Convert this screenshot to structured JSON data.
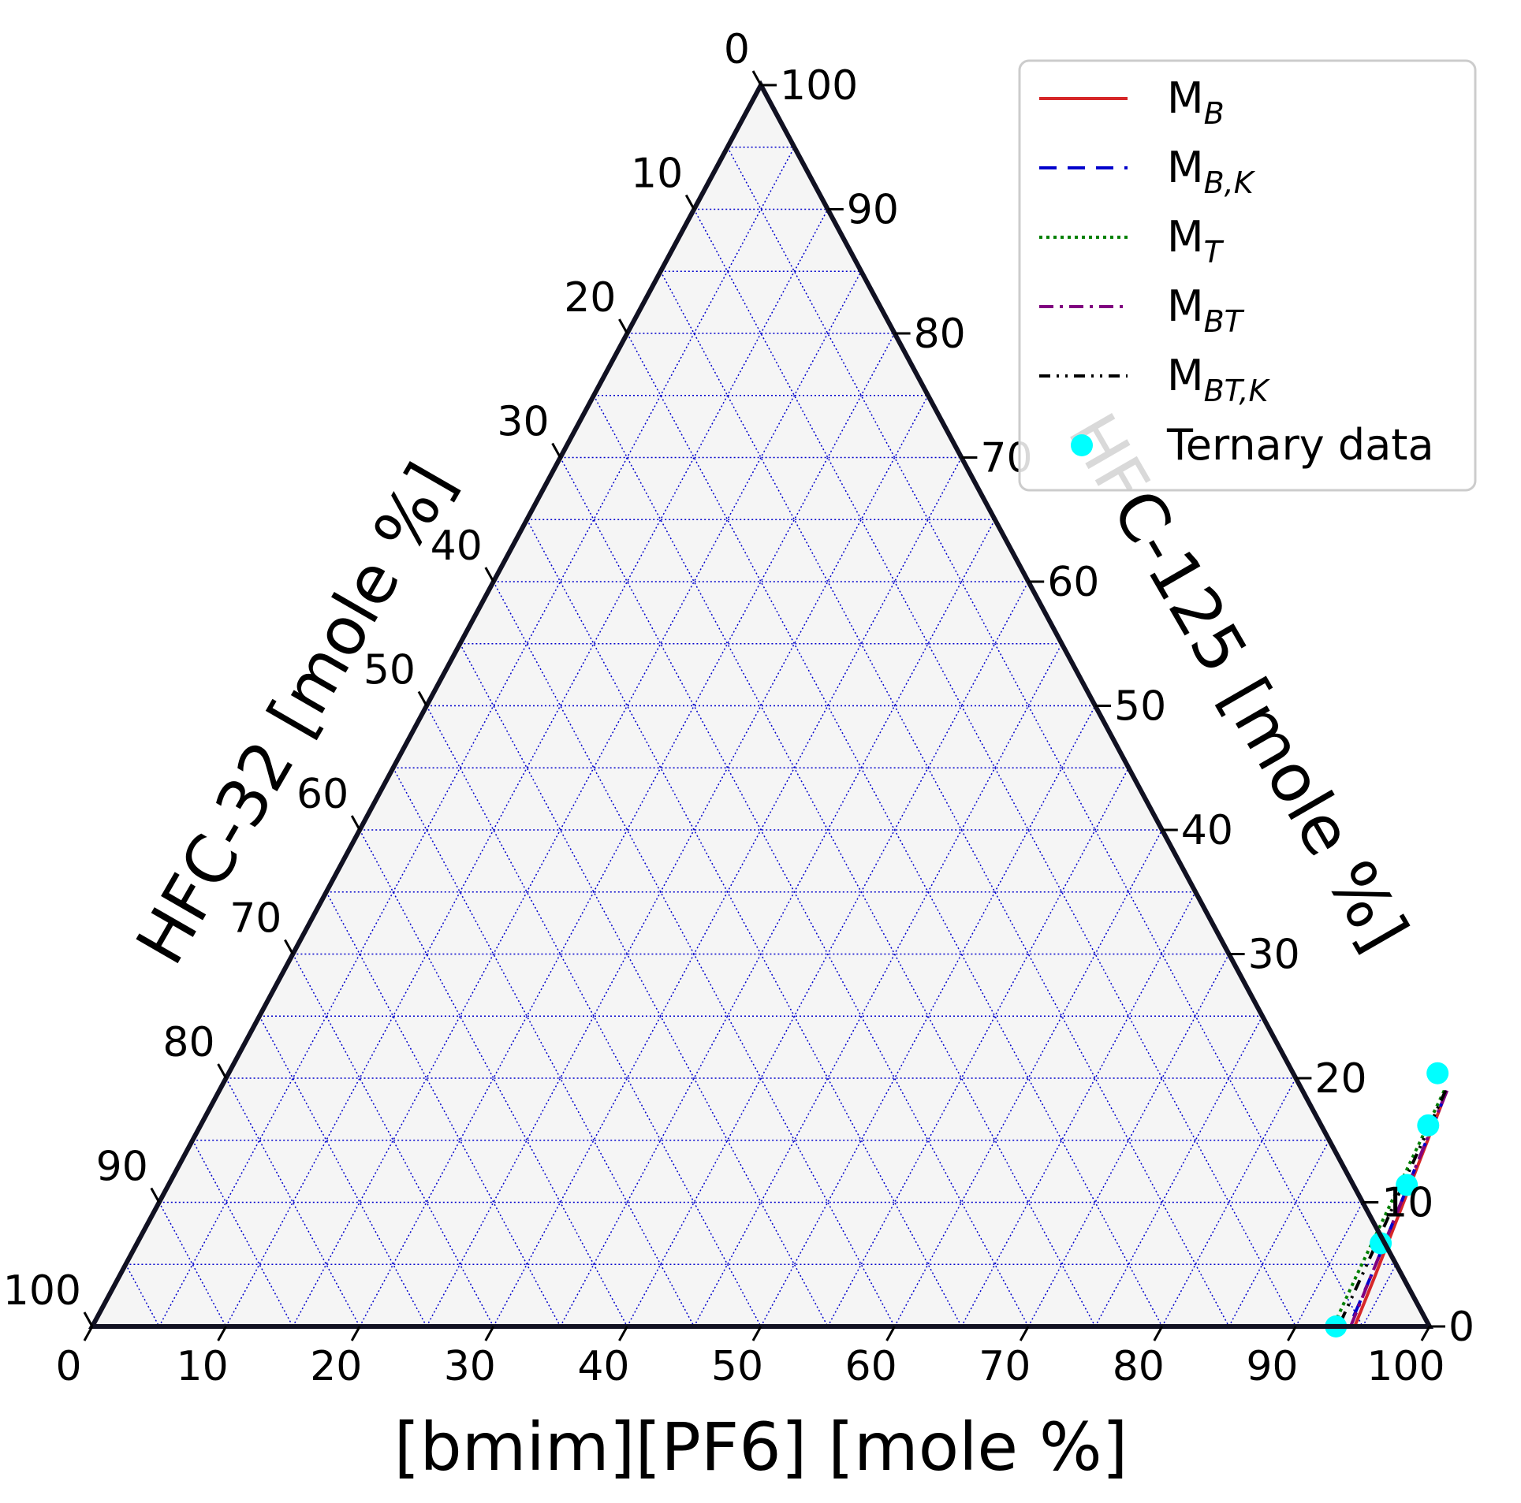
{
  "chart_data": {
    "type": "ternary",
    "axes": {
      "bottom": {
        "label": "[bmim][PF6] [mole %]",
        "ticks": [
          0,
          10,
          20,
          30,
          40,
          50,
          60,
          70,
          80,
          90,
          100
        ]
      },
      "left": {
        "label": "HFC-32 [mole %]",
        "ticks": [
          0,
          10,
          20,
          30,
          40,
          50,
          60,
          70,
          80,
          90,
          100
        ]
      },
      "right": {
        "label": "HFC-125 [mole %]",
        "ticks": [
          0,
          10,
          20,
          30,
          40,
          50,
          60,
          70,
          80,
          90,
          100
        ]
      }
    },
    "grid": true,
    "grid_color": "#0000cc",
    "background": "#f5f5f5",
    "legend": {
      "position": "top-right",
      "entries": [
        {
          "base": "M",
          "sub": "B",
          "style": "solid",
          "color": "#d62728"
        },
        {
          "base": "M",
          "sub": "B,K",
          "style": "dashed",
          "color": "#0000cc"
        },
        {
          "base": "M",
          "sub": "T",
          "style": "dotted",
          "color": "#008000"
        },
        {
          "base": "M",
          "sub": "BT",
          "style": "dashdot",
          "color": "#800080"
        },
        {
          "base": "M",
          "sub": "BT,K",
          "style": "dashdotdot",
          "color": "#000000"
        },
        {
          "text": "Ternary data",
          "style": "marker",
          "color": "#00ffff"
        }
      ]
    },
    "series": [
      {
        "name": "M_B",
        "color": "#d62728",
        "style": "solid",
        "points": [
          {
            "bmim": 91.8,
            "hfc125": 19.0
          },
          {
            "bmim": 92.5,
            "hfc125": 14.0
          },
          {
            "bmim": 93.2,
            "hfc125": 9.0
          },
          {
            "bmim": 93.9,
            "hfc125": 4.0
          },
          {
            "bmim": 94.4,
            "hfc125": 0.0
          }
        ]
      },
      {
        "name": "M_B,K",
        "color": "#0000cc",
        "style": "dashed",
        "points": [
          {
            "bmim": 91.8,
            "hfc125": 19.0
          },
          {
            "bmim": 92.4,
            "hfc125": 14.0
          },
          {
            "bmim": 93.0,
            "hfc125": 9.0
          },
          {
            "bmim": 93.6,
            "hfc125": 4.0
          },
          {
            "bmim": 94.0,
            "hfc125": 0.0
          }
        ]
      },
      {
        "name": "M_T",
        "color": "#008000",
        "style": "dotted",
        "points": [
          {
            "bmim": 91.6,
            "hfc125": 19.0
          },
          {
            "bmim": 91.9,
            "hfc125": 14.0
          },
          {
            "bmim": 92.2,
            "hfc125": 9.0
          },
          {
            "bmim": 92.5,
            "hfc125": 4.0
          },
          {
            "bmim": 92.8,
            "hfc125": 0.0
          }
        ]
      },
      {
        "name": "M_BT",
        "color": "#800080",
        "style": "dashdot",
        "points": [
          {
            "bmim": 91.8,
            "hfc125": 19.0
          },
          {
            "bmim": 92.4,
            "hfc125": 14.0
          },
          {
            "bmim": 93.0,
            "hfc125": 9.0
          },
          {
            "bmim": 93.6,
            "hfc125": 4.0
          },
          {
            "bmim": 94.1,
            "hfc125": 0.0
          }
        ]
      },
      {
        "name": "M_BT,K",
        "color": "#000000",
        "style": "dashdotdot",
        "points": [
          {
            "bmim": 91.7,
            "hfc125": 19.0
          },
          {
            "bmim": 92.1,
            "hfc125": 14.0
          },
          {
            "bmim": 92.5,
            "hfc125": 9.0
          },
          {
            "bmim": 92.9,
            "hfc125": 4.0
          },
          {
            "bmim": 93.2,
            "hfc125": 0.0
          }
        ]
      }
    ],
    "scatter": {
      "name": "Ternary data",
      "color": "#00ffff",
      "points": [
        {
          "bmim": 90.4,
          "hfc125": 20.4
        },
        {
          "bmim": 91.8,
          "hfc125": 16.2
        },
        {
          "bmim": 92.6,
          "hfc125": 11.4
        },
        {
          "bmim": 93.0,
          "hfc125": 6.7
        },
        {
          "bmim": 93.0,
          "hfc125": 0.0
        }
      ]
    }
  }
}
